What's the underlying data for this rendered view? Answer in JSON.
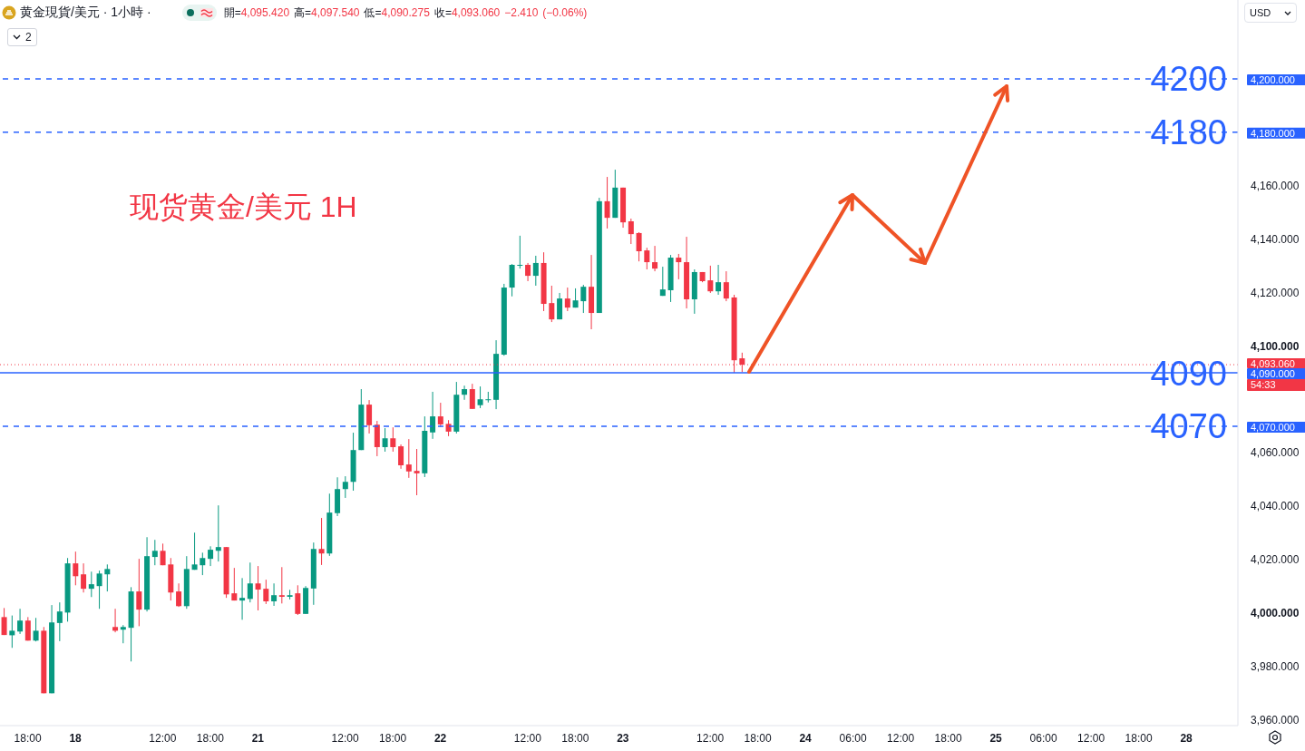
{
  "chart_data": {
    "type": "candlestick",
    "title": "黄金現貨/美元 · 1小時 ·",
    "annotations": [
      "開=4,095.420 高=4,097.540 低=4,090.275 收=4,093.060 −2.410 (−0.06%)",
      "现货黄金/美元 1H",
      "54:33",
      "USD",
      "2"
    ],
    "categories": [
      null,
      null,
      null,
      "18:00",
      null,
      null,
      null,
      null,
      null,
      "18",
      null,
      null,
      null,
      null,
      null,
      null,
      null,
      null,
      null,
      null,
      "12:00",
      null,
      null,
      null,
      null,
      null,
      "18:00",
      null,
      null,
      null,
      null,
      null,
      "21",
      null,
      null,
      null,
      null,
      null,
      null,
      null,
      null,
      null,
      null,
      "12:00",
      null,
      null,
      null,
      null,
      null,
      "18:00",
      null,
      null,
      null,
      null,
      null,
      "22",
      null,
      null,
      null,
      null,
      null,
      null,
      null,
      null,
      null,
      null,
      "12:00",
      null,
      null,
      null,
      null,
      null,
      "18:00",
      null,
      null,
      null,
      null,
      null,
      "23",
      null,
      null,
      null,
      null,
      null,
      null,
      null,
      null,
      null,
      null,
      "12:00",
      null,
      null,
      null,
      null,
      null,
      "18:00",
      null,
      null,
      null,
      null,
      null,
      "24",
      null,
      null,
      null,
      null,
      null,
      "06:00",
      null,
      null,
      null,
      null,
      null,
      "12:00",
      null,
      null,
      null,
      null,
      null,
      "18:00",
      null,
      null,
      null,
      null,
      null,
      "25",
      null,
      null,
      null,
      null,
      null,
      "06:00",
      null,
      null,
      null,
      null,
      null,
      "12:00",
      null,
      null,
      null,
      null,
      null,
      "18:00",
      null,
      null,
      null,
      null,
      null,
      "28",
      null,
      null,
      null,
      null,
      null,
      null
    ],
    "ohlc": [
      [
        3998.6,
        4002.0,
        3991.9,
        3991.9
      ],
      [
        3991.8,
        3999.2,
        3987.1,
        3993.5
      ],
      [
        3993.2,
        4001.7,
        3992.3,
        3997.3
      ],
      [
        3997.3,
        3998.6,
        3989.8,
        3989.8
      ],
      [
        3989.8,
        3998.3,
        3989.5,
        3993.5
      ],
      [
        3993.5,
        3994.9,
        3970.1,
        3970.1
      ],
      [
        3970.1,
        4003.1,
        3970.1,
        3996.6
      ],
      [
        3996.4,
        4004.1,
        3989.6,
        4000.7
      ],
      [
        4000.3,
        4020.7,
        3996.9,
        4018.7
      ],
      [
        4018.7,
        4023.1,
        4010.5,
        4013.9
      ],
      [
        4014.6,
        4018.7,
        4007.8,
        4009.2
      ],
      [
        4009.2,
        4015.6,
        4006.1,
        4010.9
      ],
      [
        4010.2,
        4016.0,
        4001.7,
        4014.9
      ],
      [
        4014.6,
        4018.3,
        4008.2,
        4016.6
      ],
      [
        3994.9,
        4001.7,
        3992.9,
        3993.5
      ],
      [
        3993.9,
        3995.6,
        3988.8,
        3994.9
      ],
      [
        3994.6,
        4009.8,
        3982.0,
        4008.2
      ],
      [
        4008.2,
        4020.4,
        3995.2,
        4001.4
      ],
      [
        4001.4,
        4028.5,
        4000.7,
        4021.4
      ],
      [
        4021.1,
        4027.5,
        4018.0,
        4023.4
      ],
      [
        4023.4,
        4026.1,
        4018.0,
        4018.0
      ],
      [
        4018.3,
        4020.7,
        4004.8,
        4007.8
      ],
      [
        4008.2,
        4011.2,
        4002.4,
        4002.7
      ],
      [
        4002.7,
        4021.4,
        4001.7,
        4016.6
      ],
      [
        4016.3,
        4030.2,
        4016.3,
        4018.3
      ],
      [
        4018.0,
        4022.7,
        4014.3,
        4020.7
      ],
      [
        4020.4,
        4025.1,
        4017.7,
        4023.8
      ],
      [
        4023.4,
        4040.4,
        4019.4,
        4024.8
      ],
      [
        4024.8,
        4024.8,
        4005.8,
        4007.1
      ],
      [
        4007.5,
        4017.0,
        4004.8,
        4004.8
      ],
      [
        4004.8,
        4013.2,
        3997.6,
        4005.8
      ],
      [
        4005.4,
        4019.0,
        4004.1,
        4011.2
      ],
      [
        4011.2,
        4017.7,
        4001.1,
        4008.9
      ],
      [
        4009.2,
        4012.6,
        4003.5,
        4004.5
      ],
      [
        4004.5,
        4011.2,
        4002.8,
        4006.8
      ],
      [
        4006.8,
        4017.3,
        4003.7,
        4006.2
      ],
      [
        4006.2,
        4008.8,
        4005.2,
        4006.8
      ],
      [
        4007.5,
        4010.5,
        3999.4,
        3999.8
      ],
      [
        3999.8,
        4010.2,
        3999.8,
        4009.5
      ],
      [
        4009.3,
        4026.5,
        4003.2,
        4024.1
      ],
      [
        4024.1,
        4035.7,
        4018.1,
        4022.4
      ],
      [
        4022.4,
        4044.8,
        4021.5,
        4037.7
      ],
      [
        4037.5,
        4050.9,
        4036.4,
        4046.5
      ],
      [
        4046.5,
        4051.3,
        4043.2,
        4049.2
      ],
      [
        4049.2,
        4067.6,
        4045.9,
        4061.1
      ],
      [
        4061.1,
        4083.9,
        4061.1,
        4078.1
      ],
      [
        4078.1,
        4079.8,
        4067.3,
        4070.4
      ],
      [
        4070.6,
        4072.0,
        4058.8,
        4062.2
      ],
      [
        4062.2,
        4069.3,
        4060.5,
        4065.5
      ],
      [
        4065.5,
        4069.6,
        4060.5,
        4062.2
      ],
      [
        4062.5,
        4063.2,
        4054.1,
        4055.4
      ],
      [
        4055.7,
        4065.2,
        4050.7,
        4053.1
      ],
      [
        4053.3,
        4061.5,
        4044.2,
        4052.4
      ],
      [
        4052.4,
        4073.7,
        4051.0,
        4068.3
      ],
      [
        4067.7,
        4082.9,
        4065.3,
        4073.7
      ],
      [
        4073.7,
        4078.8,
        4069.7,
        4070.7
      ],
      [
        4070.9,
        4072.3,
        4066.3,
        4068.0
      ],
      [
        4068.0,
        4086.6,
        4067.3,
        4081.8
      ],
      [
        4081.8,
        4085.2,
        4079.9,
        4083.9
      ],
      [
        4083.9,
        4085.9,
        4076.5,
        4076.5
      ],
      [
        4077.9,
        4084.9,
        4076.8,
        4080.1
      ],
      [
        4079.9,
        4082.9,
        4078.9,
        4080.1
      ],
      [
        4079.9,
        4102.2,
        4076.4,
        4097.1
      ],
      [
        4096.8,
        4123.3,
        4096.4,
        4121.9
      ],
      [
        4121.9,
        4130.7,
        4118.6,
        4130.4
      ],
      [
        4130.1,
        4141.3,
        4129.0,
        4130.4
      ],
      [
        4130.4,
        4131.1,
        4124.3,
        4126.3
      ],
      [
        4126.3,
        4133.8,
        4122.6,
        4131.1
      ],
      [
        4131.1,
        4135.1,
        4113.1,
        4115.8
      ],
      [
        4116.1,
        4122.6,
        4109.0,
        4110.0
      ],
      [
        4110.0,
        4119.9,
        4110.0,
        4117.8
      ],
      [
        4117.8,
        4121.9,
        4113.1,
        4114.4
      ],
      [
        4114.4,
        4121.6,
        4114.4,
        4117.1
      ],
      [
        4116.8,
        4122.9,
        4112.4,
        4122.2
      ],
      [
        4122.2,
        4134.1,
        4106.3,
        4112.4
      ],
      [
        4112.4,
        4155.5,
        4112.4,
        4154.2
      ],
      [
        4154.2,
        4163.3,
        4144.0,
        4148.0
      ],
      [
        4148.0,
        4166.0,
        4148.0,
        4159.3
      ],
      [
        4159.3,
        4159.3,
        4144.3,
        4146.3
      ],
      [
        4146.7,
        4147.7,
        4138.2,
        4141.9
      ],
      [
        4142.3,
        4142.6,
        4131.7,
        4135.5
      ],
      [
        4135.8,
        4136.8,
        4128.7,
        4131.4
      ],
      [
        4131.4,
        4137.5,
        4128.0,
        4129.0
      ],
      [
        4118.8,
        4129.7,
        4118.8,
        4121.2
      ],
      [
        4120.9,
        4134.1,
        4116.5,
        4133.1
      ],
      [
        4133.1,
        4134.5,
        4125.0,
        4131.4
      ],
      [
        4131.4,
        4140.9,
        4114.1,
        4117.5
      ],
      [
        4117.5,
        4128.7,
        4112.1,
        4127.7
      ],
      [
        4127.7,
        4127.7,
        4123.9,
        4124.3
      ],
      [
        4124.6,
        4130.1,
        4119.9,
        4120.5
      ],
      [
        4120.5,
        4130.4,
        4119.2,
        4123.9
      ],
      [
        4123.9,
        4128.0,
        4116.8,
        4117.8
      ],
      [
        4118.2,
        4119.2,
        4090.0,
        4094.7
      ],
      [
        4095.42,
        4097.54,
        4090.275,
        4093.06
      ],
      null,
      null,
      null,
      null,
      null,
      null,
      null,
      null,
      null,
      null,
      null,
      null,
      null,
      null,
      null,
      null,
      null,
      null,
      null,
      null,
      null,
      null,
      null,
      null,
      null,
      null,
      null,
      null,
      null,
      null,
      null,
      null,
      null,
      null,
      null,
      null,
      null,
      null,
      null,
      null,
      null,
      null,
      null,
      null,
      null,
      null,
      null,
      null,
      null,
      null,
      null,
      null,
      null,
      null,
      null,
      null,
      null,
      null,
      null,
      null,
      null,
      null
    ],
    "colors": [
      "#f23645",
      "#089981",
      "#089981",
      "#f23645",
      "#089981",
      "#f23645",
      "#089981",
      "#089981",
      "#089981",
      "#f23645",
      "#f23645",
      "#089981",
      "#089981",
      "#089981",
      "#f23645",
      "#089981",
      "#089981",
      "#f23645",
      "#089981",
      "#089981",
      "#f23645",
      "#f23645",
      "#f23645",
      "#089981",
      "#089981",
      "#089981",
      "#089981",
      "#089981",
      "#f23645",
      "#f23645",
      "#089981",
      "#089981",
      "#f23645",
      "#f23645",
      "#089981",
      "#f23645",
      "#089981",
      "#f23645",
      "#089981",
      "#089981",
      "#f23645",
      "#089981",
      "#089981",
      "#089981",
      "#089981",
      "#089981",
      "#f23645",
      "#f23645",
      "#089981",
      "#f23645",
      "#f23645",
      "#f23645",
      "#f23645",
      "#089981",
      "#089981",
      "#f23645",
      "#f23645",
      "#089981",
      "#089981",
      "#f23645",
      "#089981",
      "#089981",
      "#089981",
      "#089981",
      "#089981",
      "#089981",
      "#f23645",
      "#089981",
      "#f23645",
      "#f23645",
      "#089981",
      "#f23645",
      "#089981",
      "#089981",
      "#f23645",
      "#089981",
      "#f23645",
      "#089981",
      "#f23645",
      "#f23645",
      "#f23645",
      "#f23645",
      "#f23645",
      "#089981",
      "#089981",
      "#f23645",
      "#f23645",
      "#089981",
      "#f23645",
      "#f23645",
      "#089981",
      "#f23645",
      "#f23645",
      "#f23645",
      null,
      null,
      null,
      null,
      null,
      null,
      null,
      null,
      null,
      null,
      null,
      null,
      null,
      null,
      null,
      null,
      null,
      null,
      null,
      null,
      null,
      null,
      null,
      null,
      null,
      null,
      null,
      null,
      null,
      null,
      null,
      null,
      null,
      null,
      null,
      null,
      null,
      null,
      null,
      null,
      null,
      null,
      null,
      null,
      null,
      null,
      null,
      null,
      null,
      null,
      null,
      null,
      null,
      null,
      null,
      null,
      null,
      null,
      null,
      null,
      null,
      null
    ],
    "ylim": [
      3958,
      4229.5
    ],
    "yticks": [
      {
        "value": 3960,
        "label": "3,960.000"
      },
      {
        "value": 3980,
        "label": "3,980.000"
      },
      {
        "value": 4000,
        "label": "4,000.000"
      },
      {
        "value": 4020,
        "label": "4,020.000"
      },
      {
        "value": 4040,
        "label": "4,040.000"
      },
      {
        "value": 4060,
        "label": "4,060.000"
      },
      {
        "value": 4070,
        "label": "4,070.000"
      },
      {
        "value": 4090,
        "label": "4,090.000"
      },
      {
        "value": 4093.06,
        "label": "4,093.060"
      },
      {
        "value": 4100,
        "label": "4,100.000"
      },
      {
        "value": 4120,
        "label": "4,120.000"
      },
      {
        "value": 4140,
        "label": "4,140.000"
      },
      {
        "value": 4160,
        "label": "4,160.000"
      },
      {
        "value": 4180,
        "label": "4,180.000"
      },
      {
        "value": 4200,
        "label": "4,200.000"
      }
    ],
    "ref_lines": [
      {
        "axis": "y",
        "value": 4200,
        "label": "4200",
        "color": "#2962ff",
        "line_style": "dashed"
      },
      {
        "axis": "y",
        "value": 4180,
        "label": "4180",
        "color": "#2962ff",
        "line_style": "dashed"
      },
      {
        "axis": "y",
        "value": 4090,
        "label": "4090",
        "color": "#2962ff",
        "line_style": "solid"
      },
      {
        "axis": "y",
        "value": 4070,
        "label": "4070",
        "color": "#2962ff",
        "line_style": "dashed"
      },
      {
        "axis": "y",
        "value": 4093.06,
        "label": null,
        "color": "#f23645",
        "line_style": "dotted"
      }
    ]
  }
}
